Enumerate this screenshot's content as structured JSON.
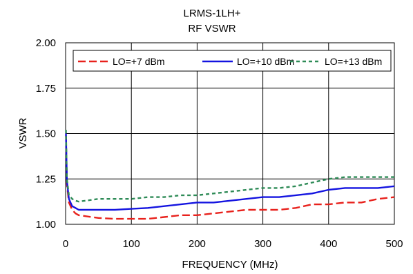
{
  "chart_data": {
    "type": "line",
    "title": "LRMS-1LH+",
    "subtitle": "RF VSWR",
    "xlabel": "FREQUENCY (MHz)",
    "ylabel": "VSWR",
    "xlim": [
      0,
      500
    ],
    "ylim": [
      1.0,
      2.0
    ],
    "x_ticks": [
      "0",
      "100",
      "200",
      "300",
      "400",
      "500"
    ],
    "y_ticks": [
      "1.00",
      "1.25",
      "1.50",
      "1.75",
      "2.00"
    ],
    "grid": true,
    "legend_position": "top",
    "series": [
      {
        "name": "LO=+7 dBm",
        "color": "#e8211c",
        "dash": "long-dash",
        "x": [
          0.5,
          2,
          5,
          10,
          15,
          20,
          30,
          50,
          75,
          100,
          125,
          150,
          175,
          200,
          225,
          250,
          275,
          300,
          325,
          350,
          375,
          400,
          425,
          450,
          475,
          500
        ],
        "y": [
          1.49,
          1.22,
          1.12,
          1.08,
          1.06,
          1.05,
          1.045,
          1.035,
          1.03,
          1.03,
          1.03,
          1.04,
          1.05,
          1.05,
          1.06,
          1.07,
          1.08,
          1.08,
          1.08,
          1.09,
          1.11,
          1.11,
          1.12,
          1.12,
          1.14,
          1.15
        ]
      },
      {
        "name": "LO=+10 dBm",
        "color": "#1414e0",
        "dash": "solid",
        "x": [
          0.5,
          2,
          5,
          10,
          15,
          20,
          30,
          50,
          75,
          100,
          125,
          150,
          175,
          200,
          225,
          250,
          275,
          300,
          325,
          350,
          375,
          400,
          425,
          450,
          475,
          500
        ],
        "y": [
          1.5,
          1.24,
          1.14,
          1.1,
          1.09,
          1.08,
          1.08,
          1.08,
          1.08,
          1.085,
          1.09,
          1.1,
          1.11,
          1.12,
          1.12,
          1.13,
          1.14,
          1.15,
          1.15,
          1.16,
          1.17,
          1.19,
          1.2,
          1.2,
          1.2,
          1.21
        ]
      },
      {
        "name": "LO=+13 dBm",
        "color": "#2e8b57",
        "dash": "short-dash",
        "x": [
          0.5,
          2,
          5,
          10,
          15,
          20,
          30,
          50,
          75,
          100,
          125,
          150,
          175,
          200,
          225,
          250,
          275,
          300,
          325,
          350,
          375,
          400,
          425,
          450,
          475,
          500
        ],
        "y": [
          1.52,
          1.25,
          1.16,
          1.14,
          1.13,
          1.125,
          1.13,
          1.14,
          1.14,
          1.14,
          1.15,
          1.15,
          1.16,
          1.16,
          1.17,
          1.18,
          1.19,
          1.2,
          1.2,
          1.21,
          1.23,
          1.25,
          1.26,
          1.26,
          1.26,
          1.26
        ]
      }
    ]
  }
}
